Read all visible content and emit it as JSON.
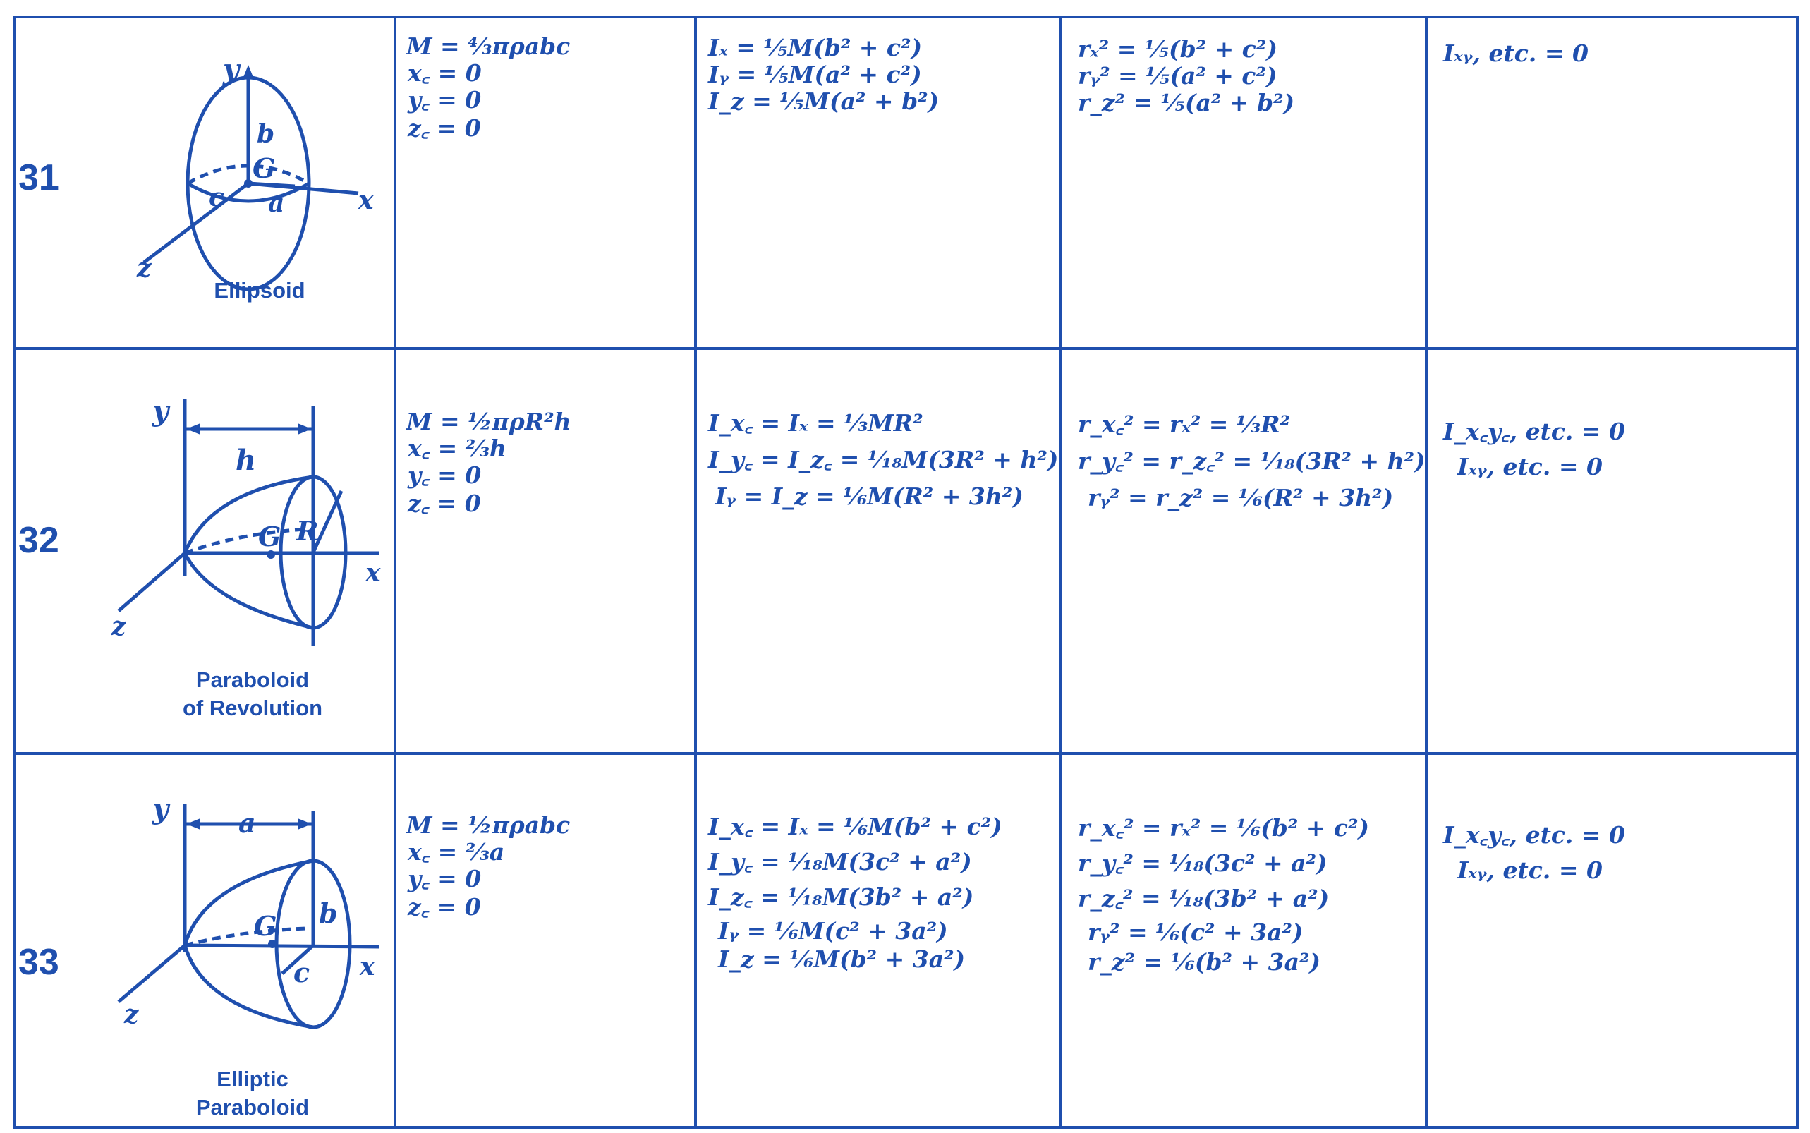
{
  "rows": [
    {
      "number": "31",
      "caption_lines": [
        "Ellipsoid"
      ],
      "figure_labels": {
        "y": "y",
        "x": "x",
        "z": "z",
        "b": "b",
        "a": "a",
        "c": "c",
        "G": "G"
      },
      "mass_centroid": [
        "M = ⁴⁄₃πρabc",
        "x꜀ = 0",
        "y꜀ = 0",
        "z꜀ = 0"
      ],
      "moments_of_inertia": [
        "Iₓ = ⅕M(b² + c²)",
        "Iᵧ = ⅕M(a² + c²)",
        "I_z = ⅕M(a² + b²)"
      ],
      "radii_of_gyration": [
        "rₓ² = ⅕(b² + c²)",
        "rᵧ² = ⅕(a² + c²)",
        "r_z² = ⅕(a² + b²)"
      ],
      "products_of_inertia": [
        "Iₓᵧ, etc. = 0"
      ]
    },
    {
      "number": "32",
      "caption_lines": [
        "Paraboloid",
        "of Revolution"
      ],
      "figure_labels": {
        "y": "y",
        "x": "x",
        "z": "z",
        "h": "h",
        "R": "R",
        "G": "G"
      },
      "mass_centroid": [
        "M = ½πρR²h",
        "x꜀ = ⅔h",
        "y꜀ = 0",
        "z꜀ = 0"
      ],
      "moments_of_inertia": [
        "I_x꜀ = Iₓ = ⅓MR²",
        "I_y꜀ = I_z꜀ = ¹⁄₁₈M(3R² + h²)",
        "Iᵧ = I_z = ⅙M(R² + 3h²)"
      ],
      "radii_of_gyration": [
        "r_x꜀² = rₓ² = ⅓R²",
        "r_y꜀² = r_z꜀² = ¹⁄₁₈(3R² + h²)",
        "rᵧ² = r_z² = ⅙(R² + 3h²)"
      ],
      "products_of_inertia": [
        "I_x꜀y꜀, etc. = 0",
        "Iₓᵧ, etc. = 0"
      ]
    },
    {
      "number": "33",
      "caption_lines": [
        "Elliptic",
        "Paraboloid"
      ],
      "figure_labels": {
        "y": "y",
        "x": "x",
        "z": "z",
        "a": "a",
        "b": "b",
        "c": "c",
        "G": "G"
      },
      "mass_centroid": [
        "M = ½πρabc",
        "x꜀ = ⅔a",
        "y꜀ = 0",
        "z꜀ = 0"
      ],
      "moments_of_inertia": [
        "I_x꜀ = Iₓ = ⅙M(b² + c²)",
        "I_y꜀ = ¹⁄₁₈M(3c² + a²)",
        "I_z꜀ = ¹⁄₁₈M(3b² + a²)",
        "Iᵧ = ⅙M(c² + 3a²)",
        "I_z = ⅙M(b² + 3a²)"
      ],
      "radii_of_gyration": [
        "r_x꜀² = rₓ² = ⅙(b² + c²)",
        "r_y꜀² = ¹⁄₁₈(3c² + a²)",
        "r_z꜀² = ¹⁄₁₈(3b² + a²)",
        "rᵧ² = ⅙(c² + 3a²)",
        "r_z² = ⅙(b² + 3a²)"
      ],
      "products_of_inertia": [
        "I_x꜀y꜀, etc. = 0",
        "Iₓᵧ, etc. = 0"
      ]
    }
  ],
  "colors": {
    "ink": "#1f4fae",
    "paper": "#ffffff"
  }
}
